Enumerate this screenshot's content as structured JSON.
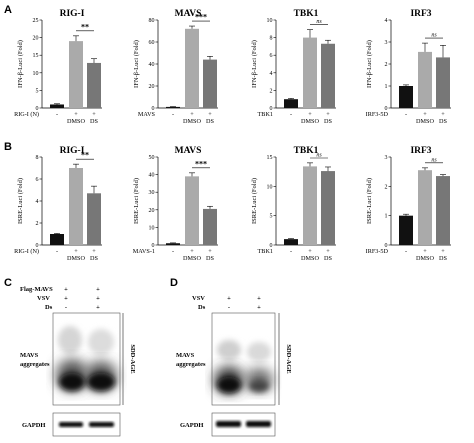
{
  "panels": {
    "A": "A",
    "B": "B",
    "C": "C",
    "D": "D"
  },
  "chart_data": [
    {
      "type": "bar",
      "panel": "A",
      "title": "RIG-I",
      "ylabel": "IFN-β-Luci (Fold)",
      "ylim": [
        0,
        25
      ],
      "yticks": [
        0,
        5,
        10,
        15,
        20,
        25
      ],
      "construct": "RIG-I (N)",
      "construct_row": [
        "-",
        "+",
        "+"
      ],
      "categories": [
        "",
        "DMSO",
        "DS"
      ],
      "values": [
        1.0,
        19.0,
        12.8
      ],
      "errors": [
        0.2,
        1.5,
        1.2
      ],
      "colors": [
        "#111111",
        "#aaaaaa",
        "#777777"
      ],
      "significance": [
        {
          "from": 1,
          "to": 2,
          "label": "**"
        }
      ]
    },
    {
      "type": "bar",
      "panel": "A",
      "title": "MAVS",
      "ylabel": "IFN-β-Luci (Fold)",
      "ylim": [
        0,
        80
      ],
      "yticks": [
        0,
        20,
        40,
        60,
        80
      ],
      "construct": "MAVS",
      "construct_row": [
        "-",
        "+",
        "+"
      ],
      "categories": [
        "",
        "DMSO",
        "DS"
      ],
      "values": [
        1.0,
        72.0,
        44.0
      ],
      "errors": [
        0.3,
        2.5,
        3.0
      ],
      "colors": [
        "#111111",
        "#aaaaaa",
        "#777777"
      ],
      "significance": [
        {
          "from": 1,
          "to": 2,
          "label": "***"
        }
      ]
    },
    {
      "type": "bar",
      "panel": "A",
      "title": "TBK1",
      "ylabel": "IFN-β-Luci (Fold)",
      "ylim": [
        0,
        10
      ],
      "yticks": [
        0,
        2,
        4,
        6,
        8,
        10
      ],
      "construct": "TBK1",
      "construct_row": [
        "-",
        "+",
        "+"
      ],
      "categories": [
        "",
        "DMSO",
        "DS"
      ],
      "values": [
        1.0,
        8.0,
        7.3
      ],
      "errors": [
        0.1,
        0.9,
        0.4
      ],
      "colors": [
        "#111111",
        "#aaaaaa",
        "#777777"
      ],
      "significance": [
        {
          "from": 1,
          "to": 2,
          "label": "ns"
        }
      ]
    },
    {
      "type": "bar",
      "panel": "A",
      "title": "IRF3",
      "ylabel": "IFN-β-Luci (Fold)",
      "ylim": [
        0,
        4
      ],
      "yticks": [
        0,
        1,
        2,
        3,
        4
      ],
      "construct": "IRF3-5D",
      "construct_row": [
        "-",
        "+",
        "+"
      ],
      "categories": [
        "",
        "DMSO",
        "DS"
      ],
      "values": [
        1.0,
        2.55,
        2.3
      ],
      "errors": [
        0.05,
        0.4,
        0.55
      ],
      "colors": [
        "#111111",
        "#aaaaaa",
        "#777777"
      ],
      "significance": [
        {
          "from": 1,
          "to": 2,
          "label": "ns"
        }
      ]
    },
    {
      "type": "bar",
      "panel": "B",
      "title": "RIG-I",
      "ylabel": "ISRE-Luci (Fold)",
      "ylim": [
        0,
        8
      ],
      "yticks": [
        0,
        2,
        4,
        6,
        8
      ],
      "construct": "RIG-I (N)",
      "construct_row": [
        "-",
        "+",
        "+"
      ],
      "categories": [
        "",
        "DMSO",
        "DS"
      ],
      "values": [
        1.0,
        7.0,
        4.7
      ],
      "errors": [
        0.05,
        0.35,
        0.65
      ],
      "colors": [
        "#111111",
        "#aaaaaa",
        "#777777"
      ],
      "significance": [
        {
          "from": 1,
          "to": 2,
          "label": "**"
        }
      ]
    },
    {
      "type": "bar",
      "panel": "B",
      "title": "MAVS",
      "ylabel": "ISRE-Luci (Fold)",
      "ylim": [
        0,
        50
      ],
      "yticks": [
        0,
        10,
        20,
        30,
        40,
        50
      ],
      "construct": "MAVS-1",
      "construct_row": [
        "-",
        "+",
        "+"
      ],
      "categories": [
        "",
        "DMSO",
        "DS"
      ],
      "values": [
        1.0,
        39.0,
        20.5
      ],
      "errors": [
        0.2,
        2.0,
        1.5
      ],
      "colors": [
        "#111111",
        "#aaaaaa",
        "#777777"
      ],
      "significance": [
        {
          "from": 1,
          "to": 2,
          "label": "***"
        }
      ]
    },
    {
      "type": "bar",
      "panel": "B",
      "title": "TBK1",
      "ylabel": "ISRE-Luci (Fold)",
      "ylim": [
        0,
        15
      ],
      "yticks": [
        0,
        5,
        10,
        15
      ],
      "construct": "TBK1",
      "construct_row": [
        "-",
        "+",
        "+"
      ],
      "categories": [
        "",
        "DMSO",
        "DS"
      ],
      "values": [
        1.0,
        13.4,
        12.6
      ],
      "errors": [
        0.1,
        0.6,
        0.7
      ],
      "colors": [
        "#111111",
        "#aaaaaa",
        "#777777"
      ],
      "significance": [
        {
          "from": 1,
          "to": 2,
          "label": "ns"
        }
      ]
    },
    {
      "type": "bar",
      "panel": "B",
      "title": "IRF3",
      "ylabel": "ISRE-Luci (Fold)",
      "ylim": [
        0,
        3
      ],
      "yticks": [
        0,
        1,
        2,
        3
      ],
      "construct": "IRF3-5D",
      "construct_row": [
        "-",
        "+",
        "+"
      ],
      "categories": [
        "",
        "DMSO",
        "DS"
      ],
      "values": [
        1.0,
        2.55,
        2.35
      ],
      "errors": [
        0.05,
        0.08,
        0.05
      ],
      "colors": [
        "#111111",
        "#aaaaaa",
        "#777777"
      ],
      "significance": [
        {
          "from": 1,
          "to": 2,
          "label": "ns"
        }
      ]
    }
  ],
  "blots": {
    "C": {
      "rows": [
        {
          "label": "Flag-MAVS",
          "values": [
            "+",
            "+"
          ]
        },
        {
          "label": "VSV",
          "values": [
            "+",
            "+"
          ]
        },
        {
          "label": "Ds",
          "values": [
            "-",
            "+"
          ]
        }
      ],
      "band_label": "MAVS aggregates",
      "side_label": "SDD-AGE",
      "loading_label": "GAPDH"
    },
    "D": {
      "rows": [
        {
          "label": "VSV",
          "values": [
            "+",
            "+"
          ]
        },
        {
          "label": "Ds",
          "values": [
            "-",
            "+"
          ]
        }
      ],
      "band_label": "MAVS aggregates",
      "side_label": "SDD-AGE",
      "loading_label": "GAPDH"
    }
  }
}
